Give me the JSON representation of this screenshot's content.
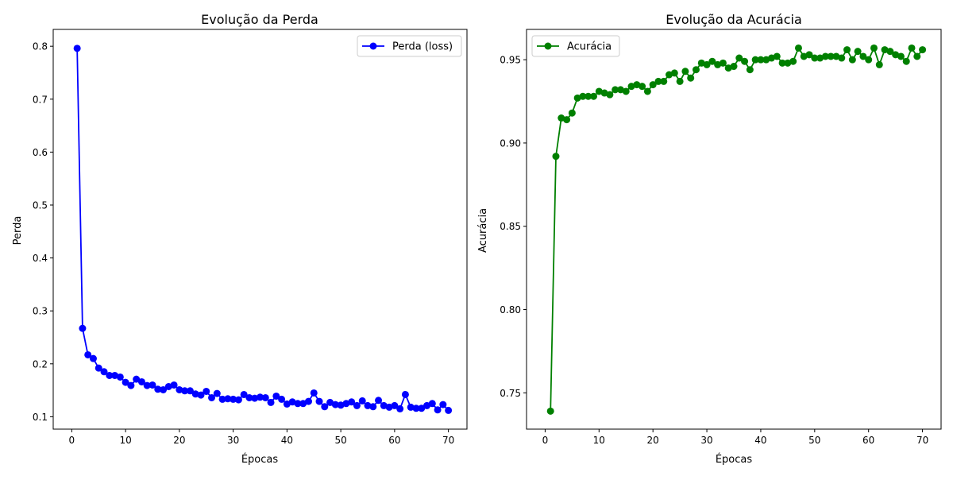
{
  "chart_data": [
    {
      "type": "line",
      "title": "Evolução da Perda",
      "xlabel": "Épocas",
      "ylabel": "Perda",
      "xlim": [
        -3.45,
        73.45
      ],
      "ylim": [
        0.0766,
        0.8318
      ],
      "xticks": [
        0,
        10,
        20,
        30,
        40,
        50,
        60,
        70
      ],
      "yticks": [
        0.1,
        0.2,
        0.3,
        0.4,
        0.5,
        0.6,
        0.7,
        0.8
      ],
      "ytick_labels": [
        "0.1",
        "0.2",
        "0.3",
        "0.4",
        "0.5",
        "0.6",
        "0.7",
        "0.8"
      ],
      "xtick_labels": [
        "0",
        "10",
        "20",
        "30",
        "40",
        "50",
        "60",
        "70"
      ],
      "grid": false,
      "legend_position": "top-right",
      "series": [
        {
          "name": "Perda (loss)",
          "color": "#0000ff",
          "marker": "circle",
          "x": [
            1,
            2,
            3,
            4,
            5,
            6,
            7,
            8,
            9,
            10,
            11,
            12,
            13,
            14,
            15,
            16,
            17,
            18,
            19,
            20,
            21,
            22,
            23,
            24,
            25,
            26,
            27,
            28,
            29,
            30,
            31,
            32,
            33,
            34,
            35,
            36,
            37,
            38,
            39,
            40,
            41,
            42,
            43,
            44,
            45,
            46,
            47,
            48,
            49,
            50,
            51,
            52,
            53,
            54,
            55,
            56,
            57,
            58,
            59,
            60,
            61,
            62,
            63,
            64,
            65,
            66,
            67,
            68,
            69,
            70
          ],
          "values": [
            0.796,
            0.267,
            0.217,
            0.21,
            0.192,
            0.185,
            0.178,
            0.178,
            0.175,
            0.165,
            0.159,
            0.171,
            0.166,
            0.159,
            0.16,
            0.152,
            0.151,
            0.157,
            0.16,
            0.151,
            0.149,
            0.149,
            0.143,
            0.141,
            0.148,
            0.136,
            0.144,
            0.133,
            0.134,
            0.133,
            0.132,
            0.142,
            0.136,
            0.135,
            0.137,
            0.136,
            0.127,
            0.139,
            0.133,
            0.124,
            0.128,
            0.125,
            0.125,
            0.129,
            0.145,
            0.129,
            0.119,
            0.127,
            0.123,
            0.122,
            0.125,
            0.128,
            0.121,
            0.13,
            0.121,
            0.119,
            0.131,
            0.121,
            0.118,
            0.121,
            0.115,
            0.142,
            0.118,
            0.116,
            0.116,
            0.121,
            0.125,
            0.113,
            0.123,
            0.112
          ]
        }
      ]
    },
    {
      "type": "line",
      "title": "Evolução da Acurácia",
      "xlabel": "Épocas",
      "ylabel": "Acurácia",
      "xlim": [
        -3.45,
        73.45
      ],
      "ylim": [
        0.7282,
        0.9682
      ],
      "xticks": [
        0,
        10,
        20,
        30,
        40,
        50,
        60,
        70
      ],
      "yticks": [
        0.75,
        0.8,
        0.85,
        0.9,
        0.95
      ],
      "ytick_labels": [
        "0.75",
        "0.80",
        "0.85",
        "0.90",
        "0.95"
      ],
      "xtick_labels": [
        "0",
        "10",
        "20",
        "30",
        "40",
        "50",
        "60",
        "70"
      ],
      "grid": false,
      "legend_position": "top-left",
      "series": [
        {
          "name": "Acurácia",
          "color": "#008000",
          "marker": "circle",
          "x": [
            1,
            2,
            3,
            4,
            5,
            6,
            7,
            8,
            9,
            10,
            11,
            12,
            13,
            14,
            15,
            16,
            17,
            18,
            19,
            20,
            21,
            22,
            23,
            24,
            25,
            26,
            27,
            28,
            29,
            30,
            31,
            32,
            33,
            34,
            35,
            36,
            37,
            38,
            39,
            40,
            41,
            42,
            43,
            44,
            45,
            46,
            47,
            48,
            49,
            50,
            51,
            52,
            53,
            54,
            55,
            56,
            57,
            58,
            59,
            60,
            61,
            62,
            63,
            64,
            65,
            66,
            67,
            68,
            69,
            70
          ],
          "values": [
            0.739,
            0.892,
            0.915,
            0.914,
            0.918,
            0.927,
            0.928,
            0.928,
            0.928,
            0.931,
            0.93,
            0.929,
            0.932,
            0.932,
            0.931,
            0.934,
            0.935,
            0.934,
            0.931,
            0.935,
            0.937,
            0.937,
            0.941,
            0.942,
            0.937,
            0.943,
            0.939,
            0.944,
            0.948,
            0.947,
            0.949,
            0.947,
            0.948,
            0.945,
            0.946,
            0.951,
            0.949,
            0.944,
            0.95,
            0.95,
            0.95,
            0.951,
            0.952,
            0.948,
            0.948,
            0.949,
            0.957,
            0.952,
            0.953,
            0.951,
            0.951,
            0.952,
            0.952,
            0.952,
            0.951,
            0.956,
            0.95,
            0.955,
            0.952,
            0.95,
            0.957,
            0.947,
            0.956,
            0.955,
            0.953,
            0.952,
            0.949,
            0.957,
            0.952,
            0.956
          ]
        }
      ]
    }
  ]
}
